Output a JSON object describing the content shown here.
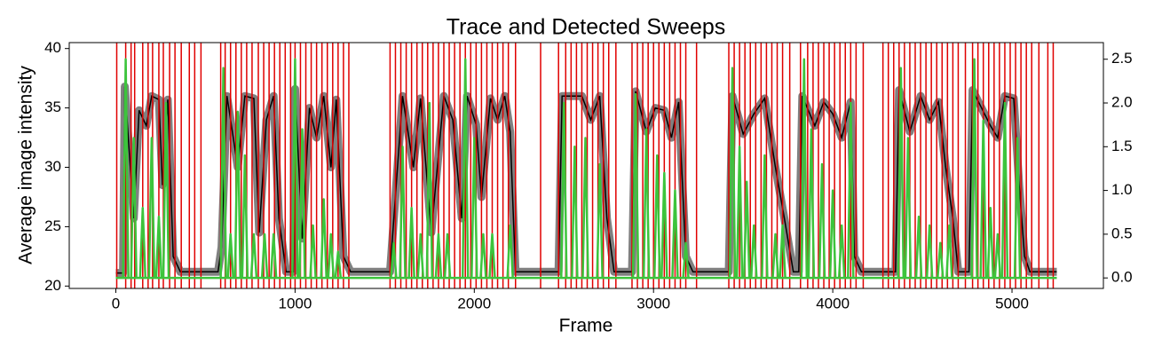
{
  "chart_data": {
    "type": "trace-sweeps",
    "title": "Trace and Detected Sweeps",
    "x_label": "Frame",
    "y_label": "Average image intensity",
    "xlim": [
      -260,
      5510
    ],
    "ylim": [
      19.8,
      40.5
    ],
    "y2lim": [
      -0.12,
      2.69
    ],
    "xticks": [
      0,
      1000,
      2000,
      3000,
      4000,
      5000
    ],
    "yticks": [
      20,
      25,
      30,
      35,
      40
    ],
    "y2ticks": [
      {
        "value": 0,
        "label": "0.0"
      },
      0.5,
      {
        "value": 1,
        "label": "1.0"
      },
      1.5,
      {
        "value": 2,
        "label": "2.0"
      },
      2.5
    ],
    "trace": {
      "color": "#000000",
      "band_color": "#808080",
      "x": [
        0,
        40,
        50,
        100,
        130,
        170,
        200,
        240,
        260,
        290,
        320,
        360,
        570,
        590,
        620,
        680,
        720,
        770,
        800,
        840,
        880,
        910,
        950,
        990,
        1000,
        1040,
        1080,
        1120,
        1160,
        1200,
        1230,
        1270,
        1310,
        1530,
        1540,
        1600,
        1660,
        1700,
        1760,
        1830,
        1880,
        1930,
        1960,
        2010,
        2040,
        2090,
        2130,
        2170,
        2200,
        2230,
        2470,
        2490,
        2540,
        2600,
        2650,
        2700,
        2740,
        2780,
        2880,
        2900,
        2960,
        3010,
        3060,
        3100,
        3140,
        3180,
        3220,
        3420,
        3440,
        3500,
        3560,
        3620,
        3680,
        3730,
        3780,
        3810,
        3830,
        3900,
        3950,
        4000,
        4050,
        4100,
        4120,
        4160,
        4350,
        4370,
        4430,
        4490,
        4540,
        4590,
        4630,
        4670,
        4700,
        4760,
        4780,
        4830,
        4880,
        4920,
        4960,
        5010,
        5040,
        5070,
        5100,
        5250
      ],
      "values": [
        21.1,
        21.1,
        36.8,
        25.7,
        34.8,
        33.5,
        36,
        35.7,
        28.5,
        35.7,
        22.5,
        21.2,
        21.2,
        23.3,
        36,
        30,
        36,
        35.8,
        24.5,
        34,
        36,
        25.7,
        21.2,
        21.2,
        36.6,
        24,
        35,
        32.5,
        36,
        30,
        35.7,
        22.5,
        21.2,
        21.2,
        23.3,
        36,
        30,
        35.8,
        24.5,
        36,
        34,
        25.7,
        36,
        33.6,
        27.5,
        35.8,
        34,
        36,
        33,
        21.2,
        21.2,
        36,
        36,
        36,
        34,
        36,
        25.7,
        21.2,
        21.2,
        36.4,
        33,
        35,
        34.8,
        32.5,
        35.5,
        22.5,
        21.2,
        21.2,
        36,
        32.8,
        34.5,
        35.8,
        30,
        25.7,
        21.2,
        21.2,
        36,
        33.5,
        35.5,
        34.5,
        32.5,
        35.5,
        22.5,
        21.2,
        21.2,
        36.5,
        33,
        36,
        34,
        35.5,
        30,
        25.7,
        21.2,
        21.2,
        36.5,
        35,
        33.5,
        32.5,
        36,
        35.8,
        28.5,
        22.5,
        21.2,
        21.2
      ]
    },
    "sweeps": {
      "color": "#e00000",
      "x": [
        5,
        55,
        85,
        105,
        150,
        180,
        205,
        240,
        265,
        300,
        330,
        365,
        410,
        440,
        475,
        585,
        610,
        640,
        670,
        700,
        730,
        760,
        795,
        825,
        855,
        885,
        915,
        945,
        975,
        1000,
        1030,
        1060,
        1090,
        1120,
        1150,
        1180,
        1210,
        1240,
        1270,
        1300,
        1530,
        1560,
        1590,
        1620,
        1650,
        1680,
        1710,
        1740,
        1770,
        1800,
        1830,
        1860,
        1890,
        1920,
        1950,
        1980,
        2010,
        2040,
        2070,
        2100,
        2130,
        2160,
        2190,
        2230,
        2370,
        2470,
        2510,
        2540,
        2570,
        2600,
        2630,
        2660,
        2690,
        2720,
        2750,
        2790,
        2880,
        2910,
        2940,
        2970,
        3000,
        3030,
        3060,
        3090,
        3120,
        3150,
        3180,
        3240,
        3420,
        3450,
        3480,
        3510,
        3540,
        3570,
        3600,
        3630,
        3660,
        3690,
        3720,
        3760,
        3820,
        3860,
        3890,
        3920,
        3950,
        3980,
        4010,
        4040,
        4070,
        4100,
        4130,
        4170,
        4280,
        4310,
        4340,
        4370,
        4400,
        4430,
        4460,
        4490,
        4520,
        4550,
        4580,
        4610,
        4640,
        4670,
        4700,
        4740,
        4780,
        4810,
        4840,
        4870,
        4900,
        4930,
        4960,
        4990,
        5020,
        5050,
        5080,
        5110,
        5150,
        5200,
        5230
      ]
    },
    "score": {
      "color": "#3cc43c",
      "axis": "y2",
      "x": [
        55,
        100,
        150,
        200,
        240,
        280,
        600,
        640,
        680,
        720,
        770,
        830,
        880,
        1000,
        1040,
        1100,
        1160,
        1200,
        1240,
        1550,
        1600,
        1650,
        1700,
        1750,
        1800,
        1850,
        1950,
        2000,
        2050,
        2100,
        2200,
        2500,
        2560,
        2620,
        2700,
        2900,
        2960,
        3020,
        3060,
        3120,
        3180,
        3440,
        3480,
        3520,
        3560,
        3620,
        3680,
        3720,
        3840,
        3880,
        3940,
        4000,
        4050,
        4100,
        4380,
        4420,
        4480,
        4540,
        4600,
        4650,
        4790,
        4840,
        4880,
        4920,
        4960,
        5030
      ],
      "values": [
        2.5,
        1.6,
        0.8,
        1.6,
        0.7,
        2.0,
        2.4,
        0.5,
        1.9,
        1.4,
        0.5,
        0.5,
        0.5,
        2.5,
        1.7,
        0.6,
        0.9,
        0.5,
        0.3,
        0.4,
        1.5,
        0.8,
        0.5,
        2.0,
        0.5,
        0.5,
        2.5,
        1.6,
        0.5,
        0.5,
        0.6,
        2.0,
        1.5,
        1.6,
        1.3,
        2.1,
        1.7,
        1.4,
        1.2,
        1.0,
        0.4,
        2.4,
        1.5,
        1.1,
        0.6,
        1.4,
        0.5,
        0.6,
        2.5,
        1.7,
        1.3,
        1.0,
        0.6,
        2.0,
        2.4,
        1.6,
        0.7,
        0.6,
        0.4,
        0.6,
        2.5,
        1.8,
        0.8,
        0.5,
        2.0,
        1.6
      ]
    }
  }
}
